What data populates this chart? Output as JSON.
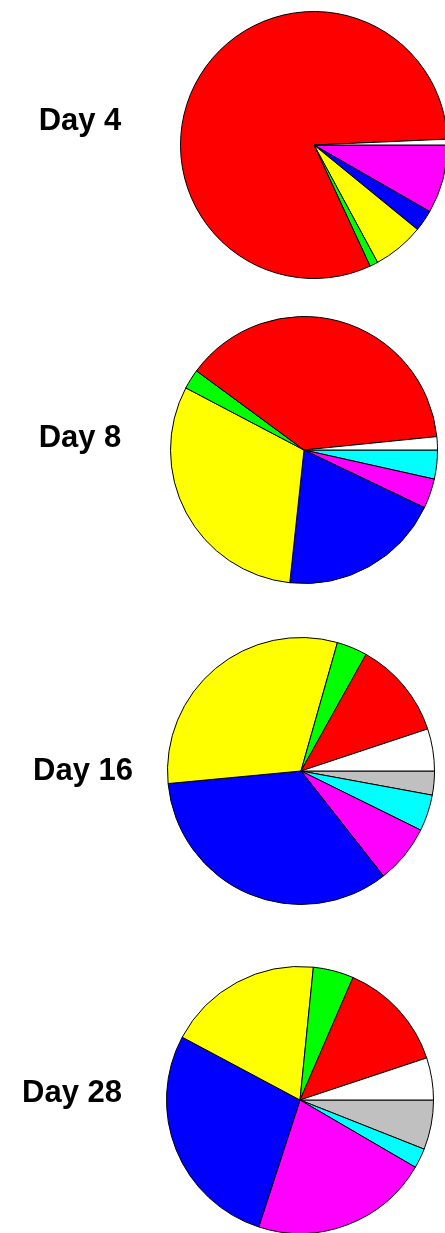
{
  "chart_data": [
    {
      "type": "pie",
      "title": "Day 4",
      "categories": [
        null,
        null,
        null,
        null,
        null,
        null,
        null,
        null
      ],
      "values": [
        0,
        0,
        8.3,
        2.6,
        6.2,
        1.0,
        81.2,
        0.7
      ],
      "colors": [
        "#c0c0c0",
        "#00ffff",
        "#ff00ff",
        "#0000ff",
        "#ffff00",
        "#00ff00",
        "#ff0000",
        "#ffffff"
      ],
      "legend": false
    },
    {
      "type": "pie",
      "title": "Day 8",
      "categories": [
        null,
        null,
        null,
        null,
        null,
        null,
        null,
        null
      ],
      "values": [
        null,
        3.5,
        3.6,
        19.6,
        31.0,
        2.4,
        38.3,
        1.6
      ],
      "colors": [
        "#c0c0c0",
        "#00ffff",
        "#ff00ff",
        "#0000ff",
        "#ffff00",
        "#00ff00",
        "#ff0000",
        "#ffffff"
      ],
      "legend": false
    },
    {
      "type": "pie",
      "title": "Day 16",
      "categories": [
        null,
        null,
        null,
        null,
        null,
        null,
        null,
        null
      ],
      "values": [
        2.9,
        4.4,
        7.1,
        34.1,
        30.9,
        3.7,
        11.8,
        5.1
      ],
      "colors": [
        "#c0c0c0",
        "#00ffff",
        "#ff00ff",
        "#0000ff",
        "#ffff00",
        "#00ff00",
        "#ff0000",
        "#ffffff"
      ],
      "legend": false
    },
    {
      "type": "pie",
      "title": "Day 28",
      "categories": [
        null,
        null,
        null,
        null,
        null,
        null,
        null,
        null
      ],
      "values": [
        6.0,
        2.4,
        21.6,
        27.8,
        18.8,
        4.9,
        13.4,
        5.1
      ],
      "colors": [
        "#c0c0c0",
        "#00ffff",
        "#ff00ff",
        "#0000ff",
        "#ffff00",
        "#00ff00",
        "#ff0000",
        "#ffffff"
      ],
      "legend": false
    }
  ]
}
